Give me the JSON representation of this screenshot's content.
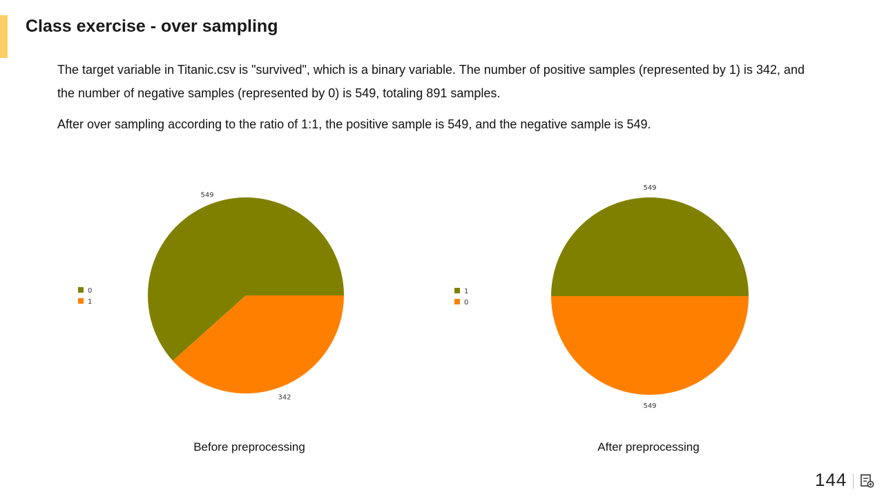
{
  "slide": {
    "title": "Class exercise - over sampling",
    "paragraph1": "The target variable in Titanic.csv is \"survived\", which is a binary variable. The number of positive samples (represented by 1) is 342, and the number of negative samples (represented by 0) is 549, totaling 891 samples.",
    "paragraph2": "After over sampling according to the ratio of 1:1, the positive sample is 549, and the negative sample is 549.",
    "page_number": "144",
    "accent_color": "#fbcf64"
  },
  "icons": {
    "notes": "notes-icon"
  },
  "chart_data": [
    {
      "type": "pie",
      "caption": "Before preprocessing",
      "legend_position": "left",
      "slices": [
        {
          "label": "0",
          "value": 549,
          "color": "#808000"
        },
        {
          "label": "1",
          "value": 342,
          "color": "#ff8000"
        }
      ]
    },
    {
      "type": "pie",
      "caption": "After preprocessing",
      "legend_position": "left",
      "slices": [
        {
          "label": "1",
          "value": 549,
          "color": "#808000"
        },
        {
          "label": "0",
          "value": 549,
          "color": "#ff8000"
        }
      ]
    }
  ]
}
